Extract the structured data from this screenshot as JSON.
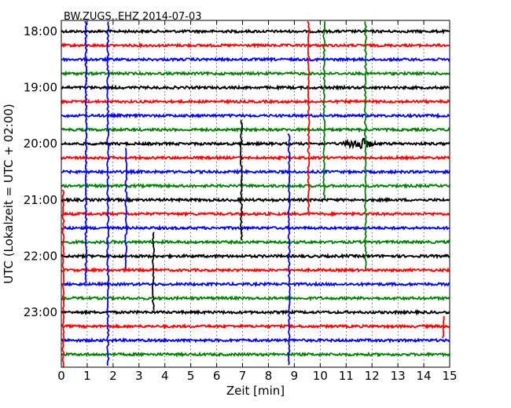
{
  "chart_data": {
    "type": "line",
    "title": "BW.ZUGS..EHZ 2014-07-03",
    "xlabel": "Zeit  [min]",
    "ylabel": "UTC (Lokalzeit = UTC + 02:00)",
    "xlim": [
      0,
      15
    ],
    "x_ticks": [
      "0",
      "1",
      "2",
      "3",
      "4",
      "5",
      "6",
      "7",
      "8",
      "9",
      "10",
      "11",
      "12",
      "13",
      "14",
      "15"
    ],
    "y_ticks": [
      "18:00",
      "19:00",
      "20:00",
      "21:00",
      "22:00",
      "23:00"
    ],
    "trace_interval_min": 15,
    "grid": true,
    "trace_colors": [
      "#000000",
      "#ff0000",
      "#0000ff",
      "#008000"
    ],
    "traces": [
      {
        "start": "18:00",
        "color": "#000000"
      },
      {
        "start": "18:15",
        "color": "#ff0000"
      },
      {
        "start": "18:30",
        "color": "#0000ff"
      },
      {
        "start": "18:45",
        "color": "#008000"
      },
      {
        "start": "19:00",
        "color": "#000000"
      },
      {
        "start": "19:15",
        "color": "#ff0000"
      },
      {
        "start": "19:30",
        "color": "#0000ff"
      },
      {
        "start": "19:45",
        "color": "#008000"
      },
      {
        "start": "20:00",
        "color": "#000000"
      },
      {
        "start": "20:15",
        "color": "#ff0000"
      },
      {
        "start": "20:30",
        "color": "#0000ff"
      },
      {
        "start": "20:45",
        "color": "#008000"
      },
      {
        "start": "21:00",
        "color": "#000000"
      },
      {
        "start": "21:15",
        "color": "#ff0000"
      },
      {
        "start": "21:30",
        "color": "#0000ff"
      },
      {
        "start": "21:45",
        "color": "#008000"
      },
      {
        "start": "22:00",
        "color": "#000000"
      },
      {
        "start": "22:15",
        "color": "#ff0000"
      },
      {
        "start": "22:30",
        "color": "#0000ff"
      },
      {
        "start": "22:45",
        "color": "#008000"
      },
      {
        "start": "23:00",
        "color": "#000000"
      },
      {
        "start": "23:15",
        "color": "#ff0000"
      },
      {
        "start": "23:30",
        "color": "#0000ff"
      },
      {
        "start": "23:45",
        "color": "#008000"
      }
    ],
    "spikes": [
      {
        "x": 0.08,
        "from": "21:00",
        "to": "24:00",
        "color": "#ff0000"
      },
      {
        "x": 0.95,
        "from": "18:00",
        "to": "22:30",
        "color": "#0000ff"
      },
      {
        "x": 1.8,
        "from": "18:00",
        "to": "24:00",
        "color": "#0000ff"
      },
      {
        "x": 2.5,
        "from": "20:15",
        "to": "22:15",
        "color": "#0000ff"
      },
      {
        "x": 3.55,
        "from": "21:45",
        "to": "23:00",
        "color": "#000000"
      },
      {
        "x": 6.95,
        "from": "19:45",
        "to": "21:45",
        "color": "#000000"
      },
      {
        "x": 8.8,
        "from": "20:00",
        "to": "24:00",
        "color": "#0000ff"
      },
      {
        "x": 9.55,
        "from": "18:00",
        "to": "21:15",
        "color": "#ff0000"
      },
      {
        "x": 10.15,
        "from": "18:00",
        "to": "21:00",
        "color": "#008000"
      },
      {
        "x": 11.75,
        "from": "18:00",
        "to": "22:15",
        "color": "#008000"
      },
      {
        "x": 14.75,
        "from": "23:15",
        "to": "23:30",
        "color": "#ff0000"
      }
    ],
    "event": {
      "trace": "20:00",
      "x_from": 10.8,
      "x_to": 12.2,
      "color": "#000000"
    }
  }
}
